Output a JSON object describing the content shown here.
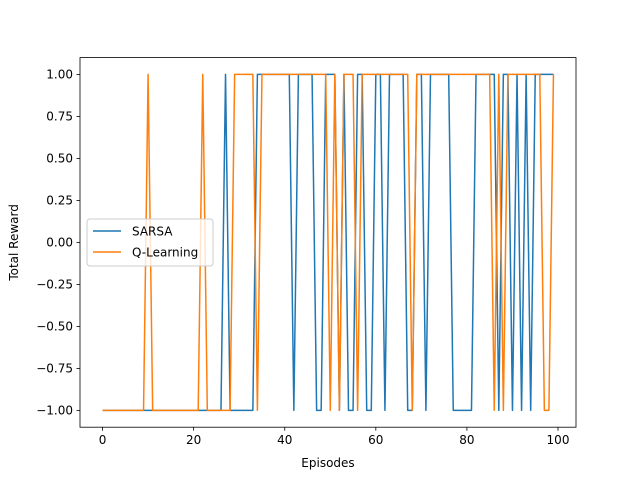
{
  "chart_data": {
    "type": "line",
    "title": "",
    "xlabel": "Episodes",
    "ylabel": "Total Reward",
    "xlim": [
      -4.95,
      103.95
    ],
    "ylim": [
      -1.1,
      1.1
    ],
    "x_ticks": [
      0,
      20,
      40,
      60,
      80,
      100
    ],
    "y_ticks": [
      -1.0,
      -0.75,
      -0.5,
      -0.25,
      0.0,
      0.25,
      0.5,
      0.75,
      1.0
    ],
    "x_tick_labels": [
      "0",
      "20",
      "40",
      "60",
      "80",
      "100"
    ],
    "y_tick_labels": [
      "−1.00",
      "−0.75",
      "−0.50",
      "−0.25",
      "0.00",
      "0.25",
      "0.50",
      "0.75",
      "1.00"
    ],
    "grid": false,
    "legend_position": "center-left",
    "x": [
      0,
      1,
      2,
      3,
      4,
      5,
      6,
      7,
      8,
      9,
      10,
      11,
      12,
      13,
      14,
      15,
      16,
      17,
      18,
      19,
      20,
      21,
      22,
      23,
      24,
      25,
      26,
      27,
      28,
      29,
      30,
      31,
      32,
      33,
      34,
      35,
      36,
      37,
      38,
      39,
      40,
      41,
      42,
      43,
      44,
      45,
      46,
      47,
      48,
      49,
      50,
      51,
      52,
      53,
      54,
      55,
      56,
      57,
      58,
      59,
      60,
      61,
      62,
      63,
      64,
      65,
      66,
      67,
      68,
      69,
      70,
      71,
      72,
      73,
      74,
      75,
      76,
      77,
      78,
      79,
      80,
      81,
      82,
      83,
      84,
      85,
      86,
      87,
      88,
      89,
      90,
      91,
      92,
      93,
      94,
      95,
      96,
      97,
      98,
      99
    ],
    "series": [
      {
        "name": "SARSA",
        "color": "#1f77b4",
        "values": [
          -1,
          -1,
          -1,
          -1,
          -1,
          -1,
          -1,
          -1,
          -1,
          -1,
          -1,
          -1,
          -1,
          -1,
          -1,
          -1,
          -1,
          -1,
          -1,
          -1,
          -1,
          -1,
          -1,
          -1,
          -1,
          -1,
          -1,
          1,
          -1,
          -1,
          -1,
          -1,
          -1,
          -1,
          1,
          1,
          1,
          1,
          1,
          1,
          1,
          1,
          -1,
          1,
          1,
          1,
          1,
          -1,
          -1,
          1,
          1,
          1,
          -1,
          1,
          -1,
          -1,
          1,
          1,
          -1,
          -1,
          1,
          1,
          -1,
          1,
          1,
          1,
          1,
          -1,
          -1,
          1,
          1,
          -1,
          1,
          1,
          1,
          1,
          1,
          -1,
          -1,
          -1,
          -1,
          -1,
          1,
          1,
          1,
          1,
          1,
          -1,
          1,
          1,
          -1,
          1,
          -1,
          1,
          -1,
          1,
          1,
          1,
          1,
          1
        ]
      },
      {
        "name": "Q-Learning",
        "color": "#ff7f0e",
        "values": [
          -1,
          -1,
          -1,
          -1,
          -1,
          -1,
          -1,
          -1,
          -1,
          -1,
          1,
          -1,
          -1,
          -1,
          -1,
          -1,
          -1,
          -1,
          -1,
          -1,
          -1,
          -1,
          1,
          -1,
          -1,
          -1,
          -1,
          -1,
          -1,
          1,
          1,
          1,
          1,
          1,
          -1,
          1,
          1,
          1,
          1,
          1,
          1,
          1,
          1,
          1,
          1,
          1,
          1,
          1,
          1,
          1,
          -1,
          1,
          -1,
          1,
          1,
          1,
          -1,
          1,
          1,
          1,
          1,
          1,
          1,
          1,
          1,
          1,
          1,
          1,
          -1,
          1,
          1,
          1,
          1,
          1,
          1,
          1,
          1,
          1,
          1,
          1,
          1,
          1,
          1,
          1,
          1,
          1,
          -1,
          1,
          -1,
          1,
          1,
          1,
          1,
          1,
          1,
          1,
          1,
          -1,
          -1,
          1
        ]
      }
    ]
  }
}
